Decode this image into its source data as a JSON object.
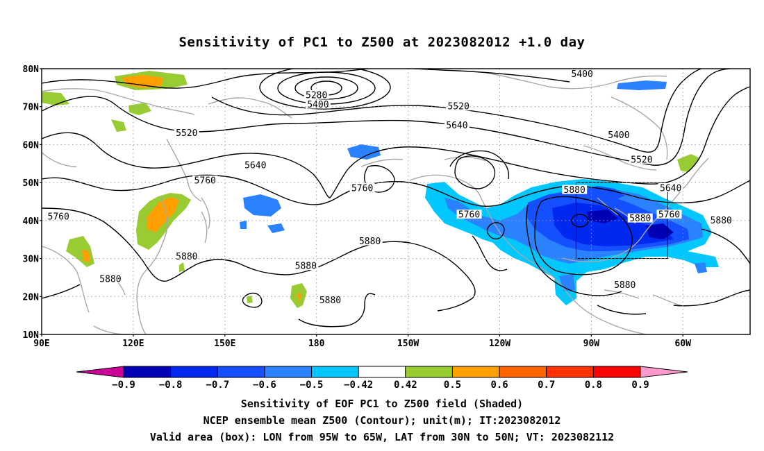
{
  "title": "Sensitivity of PC1 to Z500 at 2023082012 +1.0 day",
  "axes": {
    "lat_labels": [
      "80N",
      "70N",
      "60N",
      "50N",
      "40N",
      "30N",
      "20N",
      "10N"
    ],
    "lon_labels": [
      "90E",
      "120E",
      "150E",
      "180",
      "150W",
      "120W",
      "90W",
      "60W"
    ]
  },
  "contour_labels": [
    {
      "text": "5280",
      "lon": 180.0,
      "lat": 73.0
    },
    {
      "text": "5400",
      "lon": 180.5,
      "lat": 70.5
    },
    {
      "text": "5400",
      "lon": 267.0,
      "lat": 78.5
    },
    {
      "text": "5400",
      "lon": 279.0,
      "lat": 62.5
    },
    {
      "text": "5520",
      "lon": 137.5,
      "lat": 63.0
    },
    {
      "text": "5520",
      "lon": 226.5,
      "lat": 70.0
    },
    {
      "text": "5520",
      "lon": 286.5,
      "lat": 56.0
    },
    {
      "text": "5640",
      "lon": 160.0,
      "lat": 54.5
    },
    {
      "text": "5640",
      "lon": 226.0,
      "lat": 65.0
    },
    {
      "text": "5640",
      "lon": 296.0,
      "lat": 48.5
    },
    {
      "text": "5760",
      "lon": 95.5,
      "lat": 41.0
    },
    {
      "text": "5760",
      "lon": 143.5,
      "lat": 50.5
    },
    {
      "text": "5760",
      "lon": 195.0,
      "lat": 48.5
    },
    {
      "text": "5760",
      "lon": 230.0,
      "lat": 41.5
    },
    {
      "text": "5760",
      "lon": 295.5,
      "lat": 41.5
    },
    {
      "text": "5880",
      "lon": 112.5,
      "lat": 24.5
    },
    {
      "text": "5880",
      "lon": 137.5,
      "lat": 30.5
    },
    {
      "text": "5880",
      "lon": 176.5,
      "lat": 28.0
    },
    {
      "text": "5880",
      "lon": 197.5,
      "lat": 34.5
    },
    {
      "text": "5880",
      "lon": 184.5,
      "lat": 19.0
    },
    {
      "text": "5880",
      "lon": 264.5,
      "lat": 48.0
    },
    {
      "text": "5880",
      "lon": 286.0,
      "lat": 40.5
    },
    {
      "text": "5880",
      "lon": 281.0,
      "lat": 23.0
    },
    {
      "text": "5880",
      "lon": 312.5,
      "lat": 40.0
    }
  ],
  "valid_box": {
    "lon_min": 265,
    "lon_max": 295,
    "lat_min": 30,
    "lat_max": 50
  },
  "colorbar": {
    "colors": [
      "#cc0099",
      "#0000b4",
      "#0028f0",
      "#1450ff",
      "#2b82ff",
      "#00c8ff",
      "#ffffff",
      "#99cc33",
      "#ffa000",
      "#ff6400",
      "#ff3200",
      "#ff0000",
      "#ff99cc"
    ],
    "labels": [
      "−0.9",
      "−0.8",
      "−0.7",
      "−0.6",
      "−0.5",
      "−0.42",
      "0.42",
      "0.5",
      "0.6",
      "0.7",
      "0.8",
      "0.9"
    ]
  },
  "footer": {
    "line1": "Sensitivity of EOF PC1 to Z500 field (Shaded)",
    "line2": "NCEP ensemble mean Z500 (Contour); unit(m); IT:2023082012",
    "line3": "Valid area (box): LON from 95W to 65W, LAT from 30N to 50N; VT: 2023082112"
  }
}
